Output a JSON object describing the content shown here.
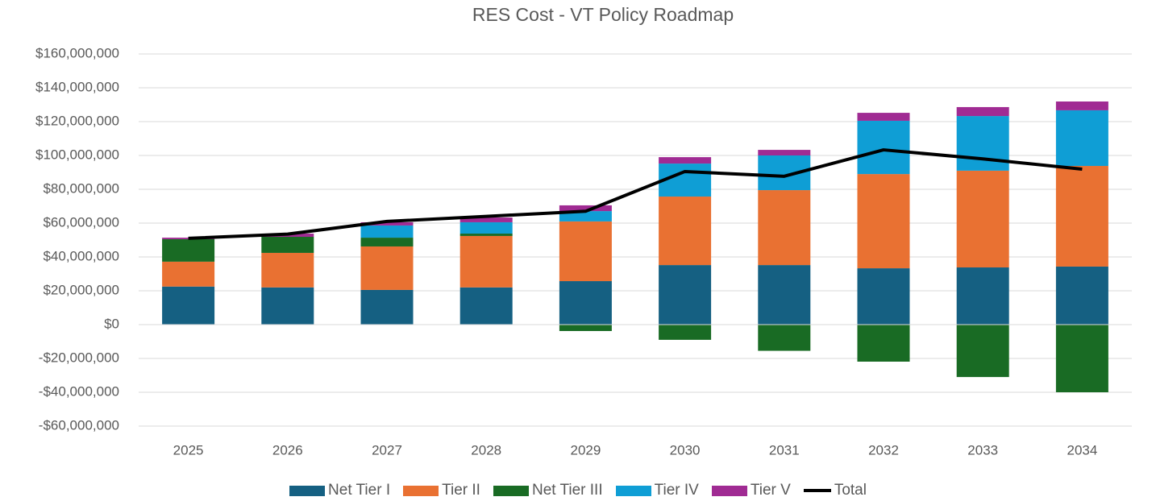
{
  "chart_data": {
    "type": "stacked-bar-line",
    "title": "RES Cost - VT Policy Roadmap",
    "categories": [
      "2025",
      "2026",
      "2027",
      "2028",
      "2029",
      "2030",
      "2031",
      "2032",
      "2033",
      "2034"
    ],
    "series": [
      {
        "name": "Net Tier I",
        "color": "#156082",
        "type": "bar",
        "values": [
          22500000,
          22000000,
          20500000,
          22000000,
          25700000,
          35200000,
          35200000,
          33300000,
          33800000,
          34300000
        ]
      },
      {
        "name": "Tier II",
        "color": "#e97132",
        "type": "bar",
        "values": [
          14700000,
          20400000,
          25700000,
          30400000,
          35300000,
          40500000,
          44300000,
          55700000,
          57200000,
          59500000
        ]
      },
      {
        "name": "Net Tier III",
        "color": "#196b24",
        "type": "bar",
        "values": [
          13300000,
          9500000,
          5200000,
          1400000,
          -3800000,
          -9000000,
          -15500000,
          -21900000,
          -31000000,
          -40000000
        ]
      },
      {
        "name": "Tier IV",
        "color": "#0f9ed5",
        "type": "bar",
        "values": [
          0,
          0,
          7200000,
          6700000,
          6100000,
          19500000,
          20500000,
          31500000,
          32300000,
          32900000
        ]
      },
      {
        "name": "Tier V",
        "color": "#a02b93",
        "type": "bar",
        "values": [
          900000,
          1900000,
          1900000,
          2800000,
          3400000,
          3800000,
          3300000,
          4700000,
          5300000,
          5200000
        ]
      },
      {
        "name": "Total",
        "color": "#000000",
        "type": "line",
        "values": [
          51000000,
          53500000,
          61000000,
          64000000,
          67000000,
          90500000,
          87700000,
          103300000,
          98000000,
          91900000
        ]
      }
    ],
    "ylim": [
      -60000000,
      160000000
    ],
    "yticks": [
      {
        "value": -60000000,
        "label": "-$60,000,000"
      },
      {
        "value": -40000000,
        "label": "-$40,000,000"
      },
      {
        "value": -20000000,
        "label": "-$20,000,000"
      },
      {
        "value": 0,
        "label": "$0"
      },
      {
        "value": 20000000,
        "label": "$20,000,000"
      },
      {
        "value": 40000000,
        "label": "$40,000,000"
      },
      {
        "value": 60000000,
        "label": "$60,000,000"
      },
      {
        "value": 80000000,
        "label": "$80,000,000"
      },
      {
        "value": 100000000,
        "label": "$100,000,000"
      },
      {
        "value": 120000000,
        "label": "$120,000,000"
      },
      {
        "value": 140000000,
        "label": "$140,000,000"
      },
      {
        "value": 160000000,
        "label": "$160,000,000"
      }
    ],
    "grid": true
  }
}
